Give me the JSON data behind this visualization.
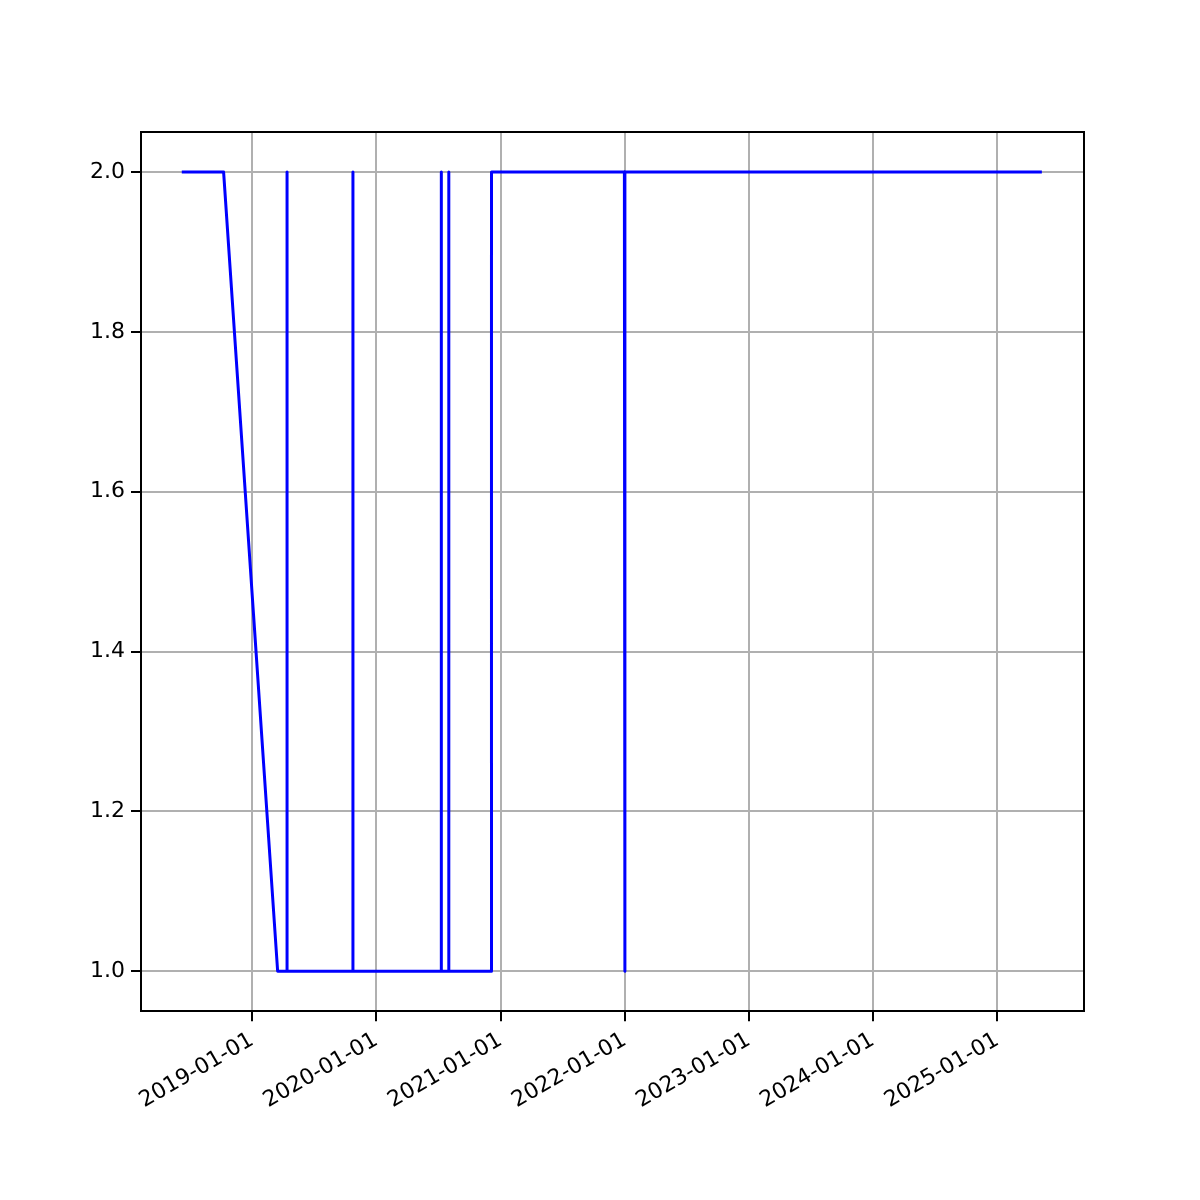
{
  "chart_data": {
    "type": "line",
    "x": [
      "2018-06-08",
      "2018-10-09",
      "2019-03-17",
      "2019-04-11",
      "2019-04-12",
      "2019-04-14",
      "2019-04-15",
      "2019-10-23",
      "2019-10-24",
      "2019-10-25",
      "2020-07-09",
      "2020-07-10",
      "2020-07-11",
      "2020-07-31",
      "2020-08-01",
      "2020-08-02",
      "2020-12-04",
      "2020-12-05",
      "2021-12-31",
      "2022-01-01",
      "2022-01-02",
      "2025-05-12"
    ],
    "series": [
      {
        "color": "#0000ff",
        "values": [
          2,
          2,
          1,
          1,
          2,
          2,
          1,
          1,
          2,
          1,
          1,
          2,
          1,
          1,
          2,
          1,
          1,
          2,
          2,
          1,
          2,
          2
        ]
      }
    ],
    "xlim": [
      "2018-02-08",
      "2025-09-13"
    ],
    "xticks": [
      "2019-01-01",
      "2020-01-01",
      "2021-01-01",
      "2022-01-01",
      "2023-01-01",
      "2024-01-01",
      "2025-01-01"
    ],
    "ylim": [
      0.95,
      2.05
    ],
    "yticks": [
      {
        "value": 1,
        "label": "1.0"
      },
      {
        "value": 1.2,
        "label": "1.2"
      },
      {
        "value": 1.4,
        "label": "1.4"
      },
      {
        "value": 1.6,
        "label": "1.6"
      },
      {
        "value": 1.8,
        "label": "1.8"
      },
      {
        "value": 2,
        "label": "2.0"
      }
    ],
    "grid": true,
    "legend": false,
    "marker": "none",
    "line_style": "solid"
  }
}
